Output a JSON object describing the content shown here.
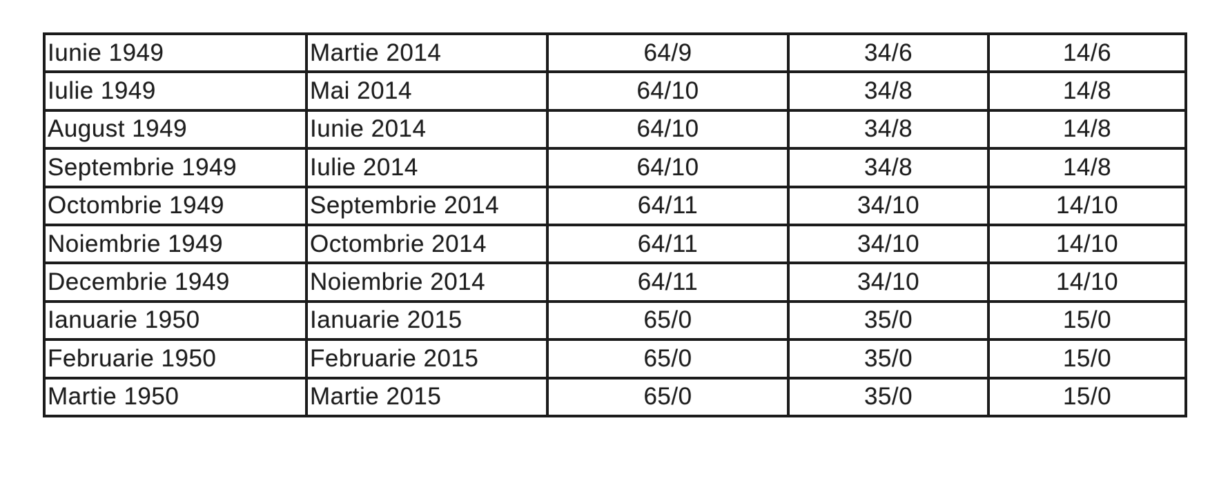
{
  "page": {
    "background_color": "#ffffff",
    "text_color": "#1e1e1e",
    "border_color": "#1b1b1b"
  },
  "table": {
    "columns": [
      {
        "name": "birth-month",
        "align": "left"
      },
      {
        "name": "retirement-month",
        "align": "left"
      },
      {
        "name": "retirement-age-years-months",
        "align": "center"
      },
      {
        "name": "full-contribution-years-months",
        "align": "center"
      },
      {
        "name": "minimum-contribution-years-months",
        "align": "center"
      }
    ],
    "rows": [
      [
        "Iunie 1949",
        "Martie 2014",
        "64/9",
        "34/6",
        "14/6"
      ],
      [
        "Iulie 1949",
        "Mai 2014",
        "64/10",
        "34/8",
        "14/8"
      ],
      [
        "August 1949",
        "Iunie 2014",
        "64/10",
        "34/8",
        "14/8"
      ],
      [
        "Septembrie 1949",
        "Iulie 2014",
        "64/10",
        "34/8",
        "14/8"
      ],
      [
        "Octombrie 1949",
        "Septembrie 2014",
        "64/11",
        "34/10",
        "14/10"
      ],
      [
        "Noiembrie 1949",
        "Octombrie 2014",
        "64/11",
        "34/10",
        "14/10"
      ],
      [
        "Decembrie 1949",
        "Noiembrie 2014",
        "64/11",
        "34/10",
        "14/10"
      ],
      [
        "Ianuarie 1950",
        "Ianuarie 2015",
        "65/0",
        "35/0",
        "15/0"
      ],
      [
        "Februarie 1950",
        "Februarie 2015",
        "65/0",
        "35/0",
        "15/0"
      ],
      [
        "Martie 1950",
        "Martie 2015",
        "65/0",
        "35/0",
        "15/0"
      ]
    ]
  }
}
